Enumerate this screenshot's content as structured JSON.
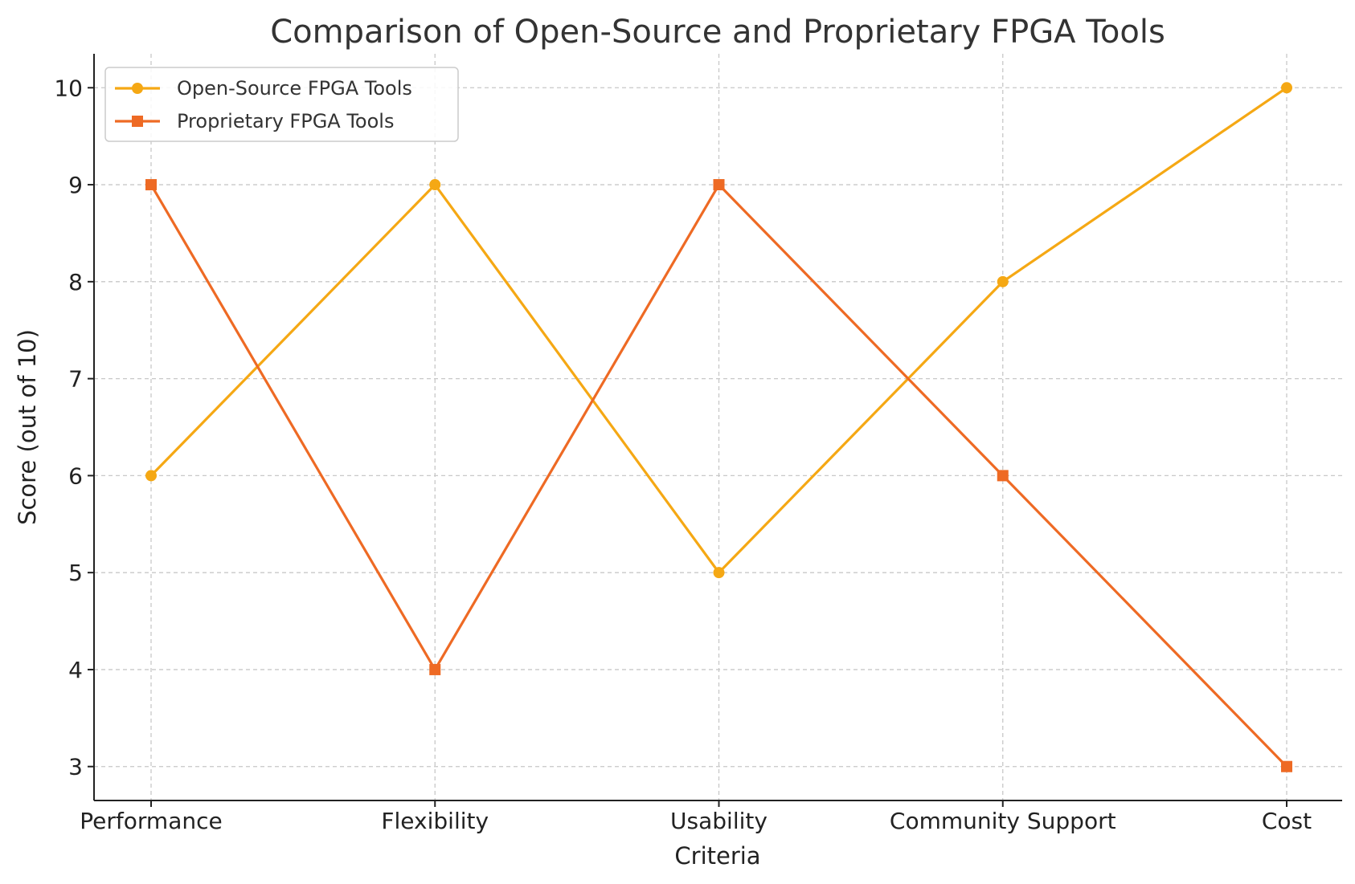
{
  "chart_data": {
    "type": "line",
    "title": "Comparison of Open-Source and Proprietary FPGA Tools",
    "xlabel": "Criteria",
    "ylabel": "Score (out of 10)",
    "categories": [
      "Performance",
      "Flexibility",
      "Usability",
      "Community Support",
      "Cost"
    ],
    "ylim": [
      2.65,
      10.35
    ],
    "yticks": [
      3,
      4,
      5,
      6,
      7,
      8,
      9,
      10
    ],
    "grid": true,
    "legend_position": "top-left",
    "series": [
      {
        "name": "Open-Source FPGA Tools",
        "values": [
          6,
          9,
          5,
          8,
          10
        ],
        "color": "#F5A814",
        "marker": "circle"
      },
      {
        "name": "Proprietary FPGA Tools",
        "values": [
          9,
          4,
          9,
          6,
          3
        ],
        "color": "#EE6A24",
        "marker": "square"
      }
    ]
  }
}
